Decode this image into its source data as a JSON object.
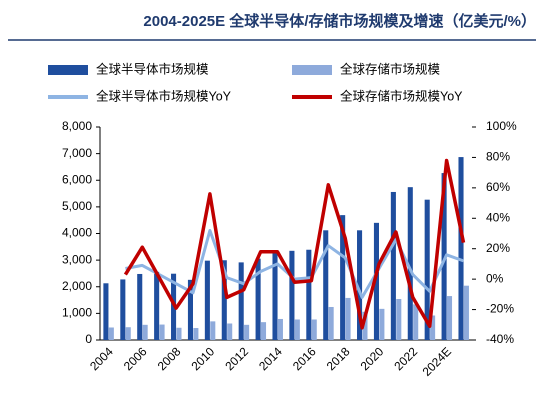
{
  "chart_data": {
    "type": "bar_line",
    "title": "2004-2025E 全球半导体/存储市场规模及增速（亿美元/%）",
    "categories": [
      "2004",
      null,
      "2006",
      null,
      "2008",
      null,
      "2010",
      null,
      "2012",
      null,
      "2014",
      null,
      "2016",
      null,
      "2018",
      null,
      "2020",
      null,
      "2022",
      null,
      "2024E",
      null
    ],
    "series": [
      {
        "name": "全球半导体市场规模",
        "kind": "bar",
        "color": "#1f4e9e",
        "values": [
          2130,
          2275,
          2480,
          2560,
          2490,
          2260,
          2980,
          2995,
          2915,
          3055,
          3360,
          3350,
          3390,
          4120,
          4690,
          4120,
          4400,
          5560,
          5740,
          5270,
          6270,
          6870
        ]
      },
      {
        "name": "全球存储市场规模",
        "kind": "bar",
        "color": "#8eaadb",
        "values": [
          470,
          480,
          570,
          580,
          460,
          450,
          700,
          620,
          570,
          670,
          790,
          770,
          770,
          1240,
          1580,
          1060,
          1170,
          1540,
          1340,
          920,
          1650,
          2040
        ]
      },
      {
        "name": "全球半导体市场规模YoY",
        "kind": "line",
        "axis": "y2",
        "color": "#8eb4e3",
        "values": [
          null,
          7,
          9,
          3,
          -3,
          -9,
          32,
          1,
          -3,
          5,
          10,
          0,
          1,
          22,
          14,
          -12,
          7,
          26,
          3,
          -8,
          16,
          12
        ]
      },
      {
        "name": "全球存储市场规模YoY",
        "kind": "line",
        "axis": "y2",
        "color": "#c00000",
        "values": [
          null,
          3,
          21,
          1,
          -19,
          -3,
          56,
          -12,
          -7,
          18,
          18,
          -2,
          -1,
          62,
          27,
          -32,
          10,
          31,
          -12,
          -31,
          78,
          24
        ]
      }
    ],
    "ylim": [
      0,
      8000
    ],
    "yticks": [
      0,
      {
        "value": 1000,
        "label": "1,000"
      },
      {
        "value": 2000,
        "label": "2,000"
      },
      {
        "value": 3000,
        "label": "3,000"
      },
      {
        "value": 4000,
        "label": "4,000"
      },
      {
        "value": 5000,
        "label": "5,000"
      },
      {
        "value": 6000,
        "label": "6,000"
      },
      {
        "value": 7000,
        "label": "7,000"
      },
      {
        "value": 8000,
        "label": "8,000"
      }
    ],
    "y2lim": [
      -40,
      100
    ],
    "y2ticks": [
      {
        "value": -40,
        "label": "-40%"
      },
      {
        "value": -20,
        "label": "-20%"
      },
      {
        "value": 0,
        "label": "0%"
      },
      {
        "value": 20,
        "label": "20%"
      },
      {
        "value": 40,
        "label": "40%"
      },
      {
        "value": 60,
        "label": "60%"
      },
      {
        "value": 80,
        "label": "80%"
      },
      {
        "value": 100,
        "label": "100%"
      }
    ],
    "grid": false
  }
}
